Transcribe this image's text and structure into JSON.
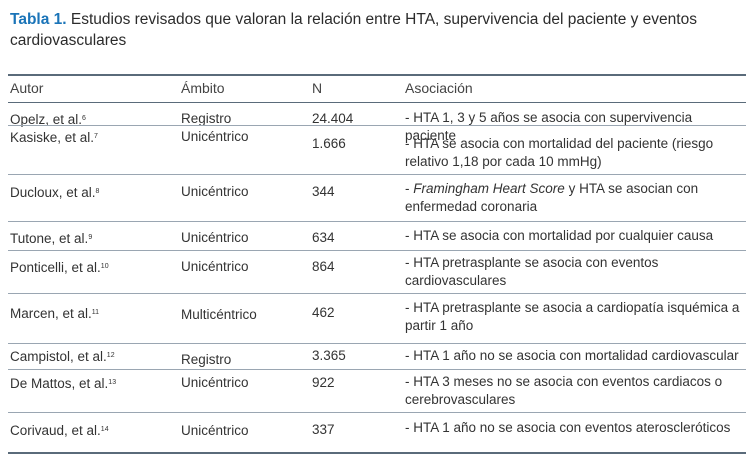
{
  "caption": {
    "label": "Tabla 1.",
    "text": " Estudios revisados que valoran la relación entre HTA, supervivencia del paciente y eventos cardiovasculares"
  },
  "table": {
    "headers": [
      "Autor",
      "Ámbito",
      "N",
      "Asociación"
    ],
    "rows": [
      {
        "author": "Opelz, et al.",
        "ref": "6",
        "scope": "Registro",
        "n": "24.404",
        "association_pre": "- HTA 1, 3 y 5 años se asocia con supervivencia paciente",
        "association_italic": "",
        "association_post": ""
      },
      {
        "author": "Kasiske, et al.",
        "ref": "7",
        "scope": "Unicéntrico",
        "n": "1.666",
        "association_pre": "- HTA se asocia con mortalidad del paciente (riesgo relativo 1,18 por cada 10 mmHg)",
        "association_italic": "",
        "association_post": ""
      },
      {
        "author": "Ducloux, et al.",
        "ref": "8",
        "scope": "Unicéntrico",
        "n": "344",
        "association_pre": "- ",
        "association_italic": "Framingham Heart Score",
        "association_post": " y HTA se asocian con enfermedad coronaria"
      },
      {
        "author": "Tutone, et al.",
        "ref": "9",
        "scope": "Unicéntrico",
        "n": "634",
        "association_pre": "- HTA se asocia con mortalidad por cualquier causa",
        "association_italic": "",
        "association_post": ""
      },
      {
        "author": "Ponticelli, et al.",
        "ref": "10",
        "scope": "Unicéntrico",
        "n": "864",
        "association_pre": "- HTA pretrasplante se asocia con eventos cardiovasculares",
        "association_italic": "",
        "association_post": ""
      },
      {
        "author": "Marcen, et al.",
        "ref": "11",
        "scope": "Multicéntrico",
        "n": "462",
        "association_pre": "- HTA  pretrasplante se asocia a cardiopatía isquémica a partir 1 año",
        "association_italic": "",
        "association_post": ""
      },
      {
        "author": "Campistol, et al.",
        "ref": "12",
        "scope": "Registro",
        "n": "3.365",
        "association_pre": "- HTA 1 año no se asocia con mortalidad cardiovascular",
        "association_italic": "",
        "association_post": ""
      },
      {
        "author": "De Mattos, et al.",
        "ref": "13",
        "scope": "Unicéntrico",
        "n": "922",
        "association_pre": "- HTA 3 meses no se asocia con eventos cardiacos o cerebrovasculares",
        "association_italic": "",
        "association_post": ""
      },
      {
        "author": "Corivaud, et al.",
        "ref": "14",
        "scope": "Unicéntrico",
        "n": "337",
        "association_pre": "- HTA 1 año no se asocia con eventos ateroscleróticos",
        "association_italic": "",
        "association_post": ""
      }
    ]
  }
}
